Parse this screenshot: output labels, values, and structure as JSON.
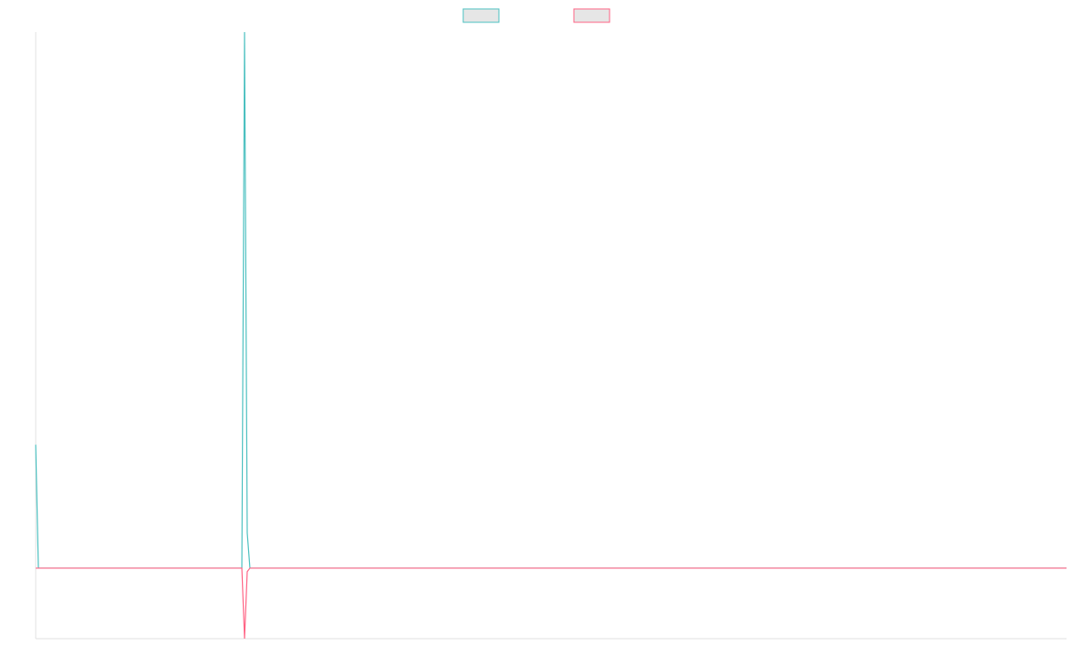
{
  "chart_data": {
    "type": "line",
    "x": [
      0,
      1,
      77,
      78,
      79,
      80,
      342,
      385
    ],
    "xlim": [
      0,
      385
    ],
    "ylim": [
      -1,
      7.6
    ],
    "grid": false,
    "legend": "top",
    "series": [
      {
        "color": "#4bc0c0",
        "values": [
          1.75,
          0,
          0,
          7.6,
          0.5,
          0,
          0,
          0
        ]
      },
      {
        "color": "#ff6384",
        "values": [
          0,
          0,
          0,
          -1,
          -0.05,
          0,
          0,
          0
        ]
      }
    ]
  }
}
